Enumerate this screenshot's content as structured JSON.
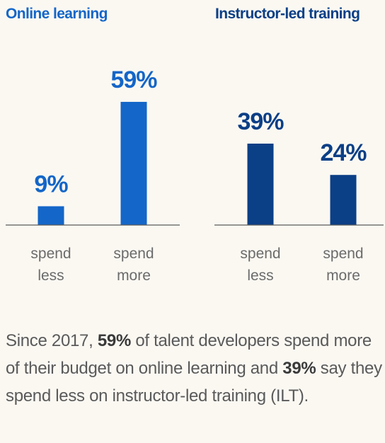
{
  "colors": {
    "online": "#1466c8",
    "ilt": "#0b3f86",
    "axis": "#5a5a5a",
    "tick": "#6b6b6b"
  },
  "chart_data": [
    {
      "type": "bar",
      "title": "Online learning",
      "categories": [
        [
          "spend",
          "less"
        ],
        [
          "spend",
          "more"
        ]
      ],
      "values": [
        9,
        59
      ],
      "value_labels": [
        "9%",
        "59%"
      ],
      "ylim": [
        0,
        100
      ],
      "grid": false
    },
    {
      "type": "bar",
      "title": "Instructor-led training",
      "categories": [
        [
          "spend",
          "less"
        ],
        [
          "spend",
          "more"
        ]
      ],
      "values": [
        39,
        24
      ],
      "value_labels": [
        "39%",
        "24%"
      ],
      "ylim": [
        0,
        100
      ],
      "grid": false
    }
  ],
  "caption": {
    "p1": "Since 2017, ",
    "b1": "59%",
    "p2": " of talent developers spend more of their budget on online learning and ",
    "b2": "39%",
    "p3": " say they spend less on instructor-led training (ILT)."
  }
}
